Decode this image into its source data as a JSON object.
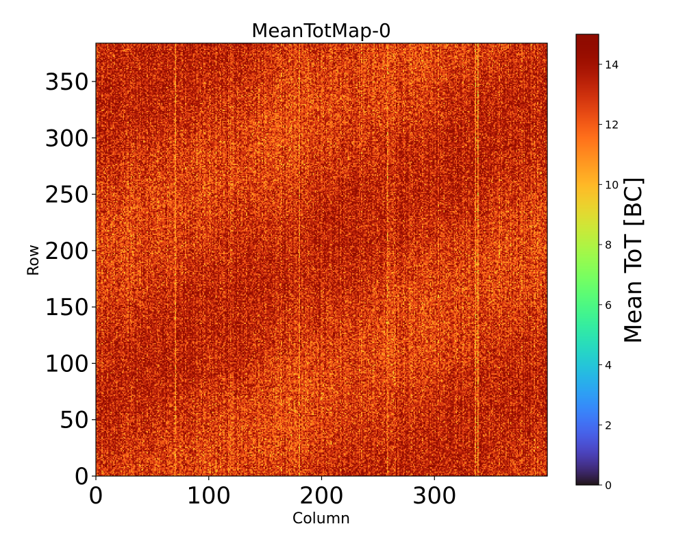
{
  "chart_data": {
    "type": "heatmap",
    "title": "MeanTotMap-0",
    "xlabel": "Column",
    "ylabel": "Row",
    "xlim": [
      0,
      400
    ],
    "ylim": [
      0,
      384
    ],
    "x_ticks": [
      0,
      100,
      200,
      300
    ],
    "x_tick_labels": [
      "0",
      "100",
      "200",
      "300"
    ],
    "y_ticks": [
      0,
      50,
      100,
      150,
      200,
      250,
      300,
      350
    ],
    "y_tick_labels": [
      "0",
      "50",
      "100",
      "150",
      "200",
      "250",
      "300",
      "350"
    ],
    "colorbar": {
      "label": "Mean ToT [BC]",
      "colormap": "turbo",
      "range": [
        0,
        15
      ],
      "ticks": [
        0,
        2,
        4,
        6,
        8,
        10,
        12,
        14
      ],
      "tick_labels": [
        "0",
        "2",
        "4",
        "6",
        "8",
        "10",
        "12",
        "14"
      ]
    },
    "grid": false,
    "data_summary": {
      "columns": 400,
      "rows": 384,
      "typical_value": 13,
      "value_range_observed": [
        7,
        15
      ],
      "bright_columns": [
        {
          "column": 70,
          "mean": 11.0
        },
        {
          "column": 180,
          "mean": 11.2
        },
        {
          "column": 258,
          "mean": 11.4
        },
        {
          "column": 336,
          "mean": 10.8
        },
        {
          "column": 338,
          "mean": 10.5
        }
      ]
    }
  }
}
